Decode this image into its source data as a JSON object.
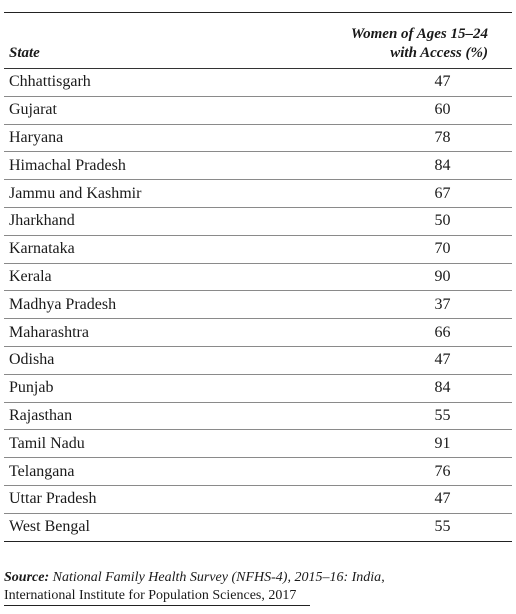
{
  "table": {
    "headers": {
      "state": "State",
      "value_line1": "Women of Ages 15–24",
      "value_line2": "with Access (%)"
    },
    "rows": [
      {
        "state": "Chhattisgarh",
        "value": "47"
      },
      {
        "state": "Gujarat",
        "value": "60"
      },
      {
        "state": "Haryana",
        "value": "78"
      },
      {
        "state": "Himachal Pradesh",
        "value": "84"
      },
      {
        "state": "Jammu and Kashmir",
        "value": "67"
      },
      {
        "state": "Jharkhand",
        "value": "50"
      },
      {
        "state": "Karnataka",
        "value": "70"
      },
      {
        "state": "Kerala",
        "value": "90"
      },
      {
        "state": "Madhya Pradesh",
        "value": "37"
      },
      {
        "state": "Maharashtra",
        "value": "66"
      },
      {
        "state": "Odisha",
        "value": "47"
      },
      {
        "state": "Punjab",
        "value": "84"
      },
      {
        "state": "Rajasthan",
        "value": "55"
      },
      {
        "state": "Tamil Nadu",
        "value": "91"
      },
      {
        "state": "Telangana",
        "value": "76"
      },
      {
        "state": "Uttar Pradesh",
        "value": "47"
      },
      {
        "state": "West Bengal",
        "value": "55"
      }
    ]
  },
  "source": {
    "label": "Source",
    "colon": ":",
    "title": "National Family Health Survey (NFHS-4), 2015–16: India",
    "comma": ",",
    "publisher": "International Institute for Population Sciences, 2017"
  }
}
